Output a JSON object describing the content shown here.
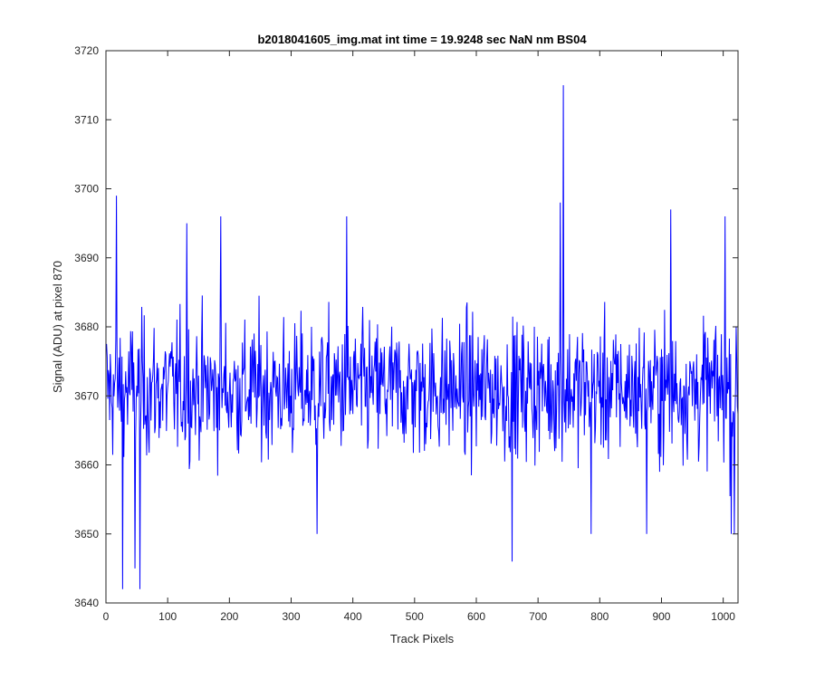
{
  "chart_data": {
    "type": "line",
    "title": "b2018041605_img.mat int time = 19.9248 sec  NaN nm BS04",
    "xlabel": "Track Pixels",
    "ylabel": "Signal (ADU) at pixel 870",
    "xlim": [
      0,
      1024
    ],
    "ylim": [
      3640,
      3720
    ],
    "x_ticks": [
      0,
      100,
      200,
      300,
      400,
      500,
      600,
      700,
      800,
      900,
      1000
    ],
    "y_ticks": [
      3640,
      3650,
      3660,
      3670,
      3680,
      3690,
      3700,
      3710,
      3720
    ],
    "grid": false,
    "legend": "none",
    "line_color": "#0000ff",
    "axis_color": "#262626",
    "series": [
      {
        "x_start": 1,
        "x_step": 1,
        "n_points": 1024,
        "typical_mean": 3671,
        "typical_range": [
          3655,
          3688
        ],
        "spikes": [
          {
            "x": 17,
            "y": 3699
          },
          {
            "x": 27,
            "y": 3642
          },
          {
            "x": 47,
            "y": 3645
          },
          {
            "x": 55,
            "y": 3642
          },
          {
            "x": 186,
            "y": 3696
          },
          {
            "x": 131,
            "y": 3695
          },
          {
            "x": 342,
            "y": 3650
          },
          {
            "x": 390,
            "y": 3696
          },
          {
            "x": 658,
            "y": 3646
          },
          {
            "x": 736,
            "y": 3698
          },
          {
            "x": 741,
            "y": 3715
          },
          {
            "x": 786,
            "y": 3650
          },
          {
            "x": 876,
            "y": 3650
          },
          {
            "x": 915,
            "y": 3697
          },
          {
            "x": 1003,
            "y": 3696
          },
          {
            "x": 1013,
            "y": 3650
          },
          {
            "x": 1018,
            "y": 3650
          }
        ]
      }
    ]
  }
}
